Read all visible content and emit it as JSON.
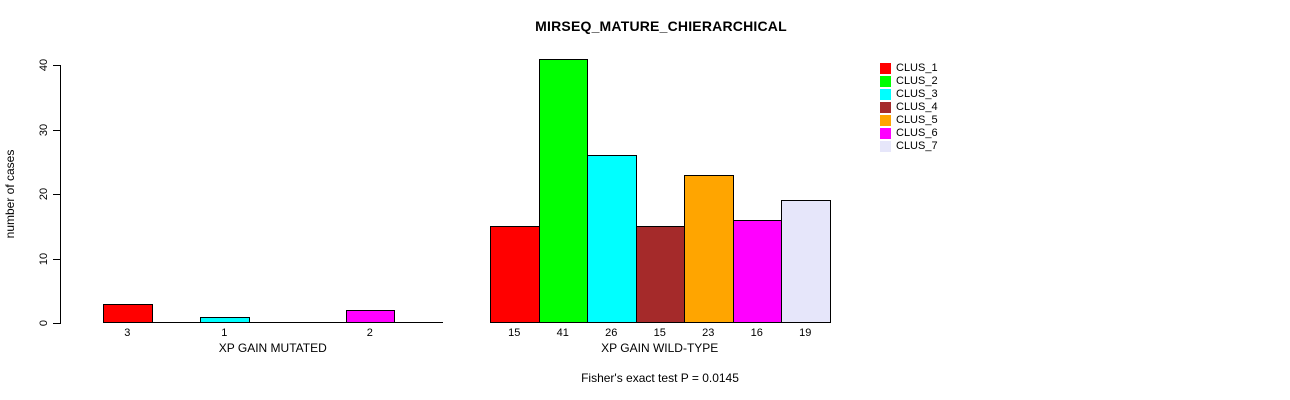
{
  "page": {
    "title": "MIRSEQ_MATURE_CHIERARCHICAL",
    "footer": "Fisher's exact test P = 0.0145"
  },
  "chart_data": {
    "type": "bar",
    "title": "MIRSEQ_MATURE_CHIERARCHICAL",
    "xlabel": "",
    "ylabel": "number of cases",
    "ylim": [
      0,
      41
    ],
    "yticks": [
      0,
      10,
      20,
      30,
      40
    ],
    "grid": false,
    "legend_position": "right",
    "legend": [
      {
        "name": "CLUS_1",
        "color": "#FF0000"
      },
      {
        "name": "CLUS_2",
        "color": "#00FF00"
      },
      {
        "name": "CLUS_3",
        "color": "#00FFFF"
      },
      {
        "name": "CLUS_4",
        "color": "#A52A2A"
      },
      {
        "name": "CLUS_5",
        "color": "#FFA500"
      },
      {
        "name": "CLUS_6",
        "color": "#FF00FF"
      },
      {
        "name": "CLUS_7",
        "color": "#E6E6FA"
      }
    ],
    "groups": [
      {
        "label": "XP GAIN MUTATED",
        "categories": [
          "CLUS_1",
          "CLUS_2",
          "CLUS_3",
          "CLUS_4",
          "CLUS_5",
          "CLUS_6",
          "CLUS_7"
        ],
        "values": [
          3,
          0,
          1,
          0,
          0,
          2,
          0
        ]
      },
      {
        "label": "XP GAIN WILD-TYPE",
        "categories": [
          "CLUS_1",
          "CLUS_2",
          "CLUS_3",
          "CLUS_4",
          "CLUS_5",
          "CLUS_6",
          "CLUS_7"
        ],
        "values": [
          15,
          41,
          26,
          15,
          23,
          16,
          19
        ]
      }
    ],
    "annotation": "Fisher's exact test P = 0.0145"
  }
}
